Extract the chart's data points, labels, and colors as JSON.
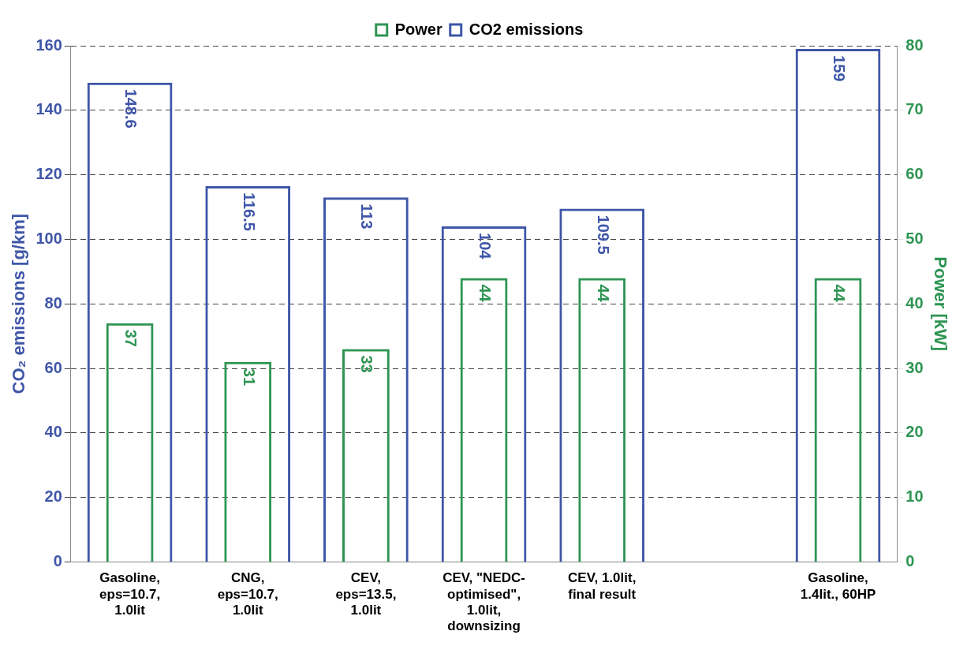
{
  "chart_data": {
    "type": "bar",
    "categories": [
      "Gasoline,\neps=10.7,\n1.0lit",
      "CNG,\neps=10.7,\n1.0lit",
      "CEV,\neps=13.5,\n1.0lit",
      "CEV, \"NEDC-\noptimised\",\n1.0lit,\ndownsizing",
      "CEV, 1.0lit,\nfinal result",
      null,
      "Gasoline,\n1.4lit., 60HP"
    ],
    "series": [
      {
        "name": "CO2 emissions",
        "color": "#3f56a8",
        "values": [
          148.6,
          116.5,
          113,
          104,
          109.5,
          null,
          159
        ]
      },
      {
        "name": "Power",
        "color": "#2e9553",
        "axis": "y2",
        "values": [
          37,
          31,
          33,
          44,
          44,
          null,
          44
        ]
      }
    ],
    "ylabel": "CO₂ emissions [g/km]",
    "y2label": "Power [kW]",
    "ylim": [
      0,
      160
    ],
    "yticks": [
      0,
      20,
      40,
      60,
      80,
      100,
      120,
      140,
      160
    ],
    "y2lim": [
      0,
      80
    ],
    "y2ticks": [
      0,
      10,
      20,
      30,
      40,
      50,
      60,
      70,
      80
    ],
    "grid": "y",
    "legend": "top",
    "data_labels": true
  }
}
